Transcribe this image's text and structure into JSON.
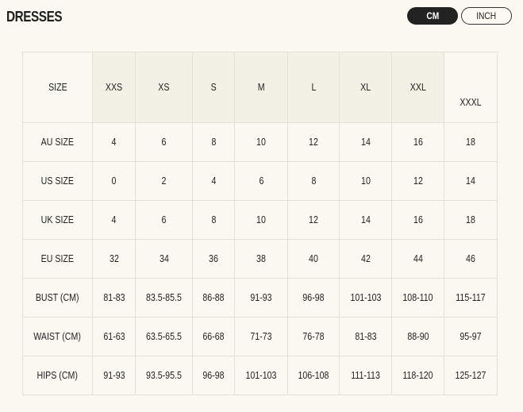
{
  "title": "DRESSES",
  "units": {
    "options": [
      "CM",
      "INCH"
    ],
    "selected": "CM"
  },
  "table": {
    "header": [
      "SIZE",
      "XXS",
      "XS",
      "S",
      "M",
      "L",
      "XL",
      "XXL",
      "XXXL"
    ],
    "rows": [
      [
        "AU SIZE",
        "4",
        "6",
        "8",
        "10",
        "12",
        "14",
        "16",
        "18"
      ],
      [
        "US SIZE",
        "0",
        "2",
        "4",
        "6",
        "8",
        "10",
        "12",
        "14"
      ],
      [
        "UK SIZE",
        "4",
        "6",
        "8",
        "10",
        "12",
        "14",
        "16",
        "18"
      ],
      [
        "EU SIZE",
        "32",
        "34",
        "36",
        "38",
        "40",
        "42",
        "44",
        "46"
      ],
      [
        "BUST (CM)",
        "81-83",
        "83.5-85.5",
        "86-88",
        "91-93",
        "96-98",
        "101-103",
        "108-110",
        "115-117"
      ],
      [
        "WAIST (CM)",
        "61-63",
        "63.5-65.5",
        "66-68",
        "71-73",
        "76-78",
        "81-83",
        "88-90",
        "95-97"
      ],
      [
        "HIPS (CM)",
        "91-93",
        "93.5-95.5",
        "96-98",
        "101-103",
        "106-108",
        "111-113",
        "118-120",
        "125-127"
      ]
    ]
  }
}
